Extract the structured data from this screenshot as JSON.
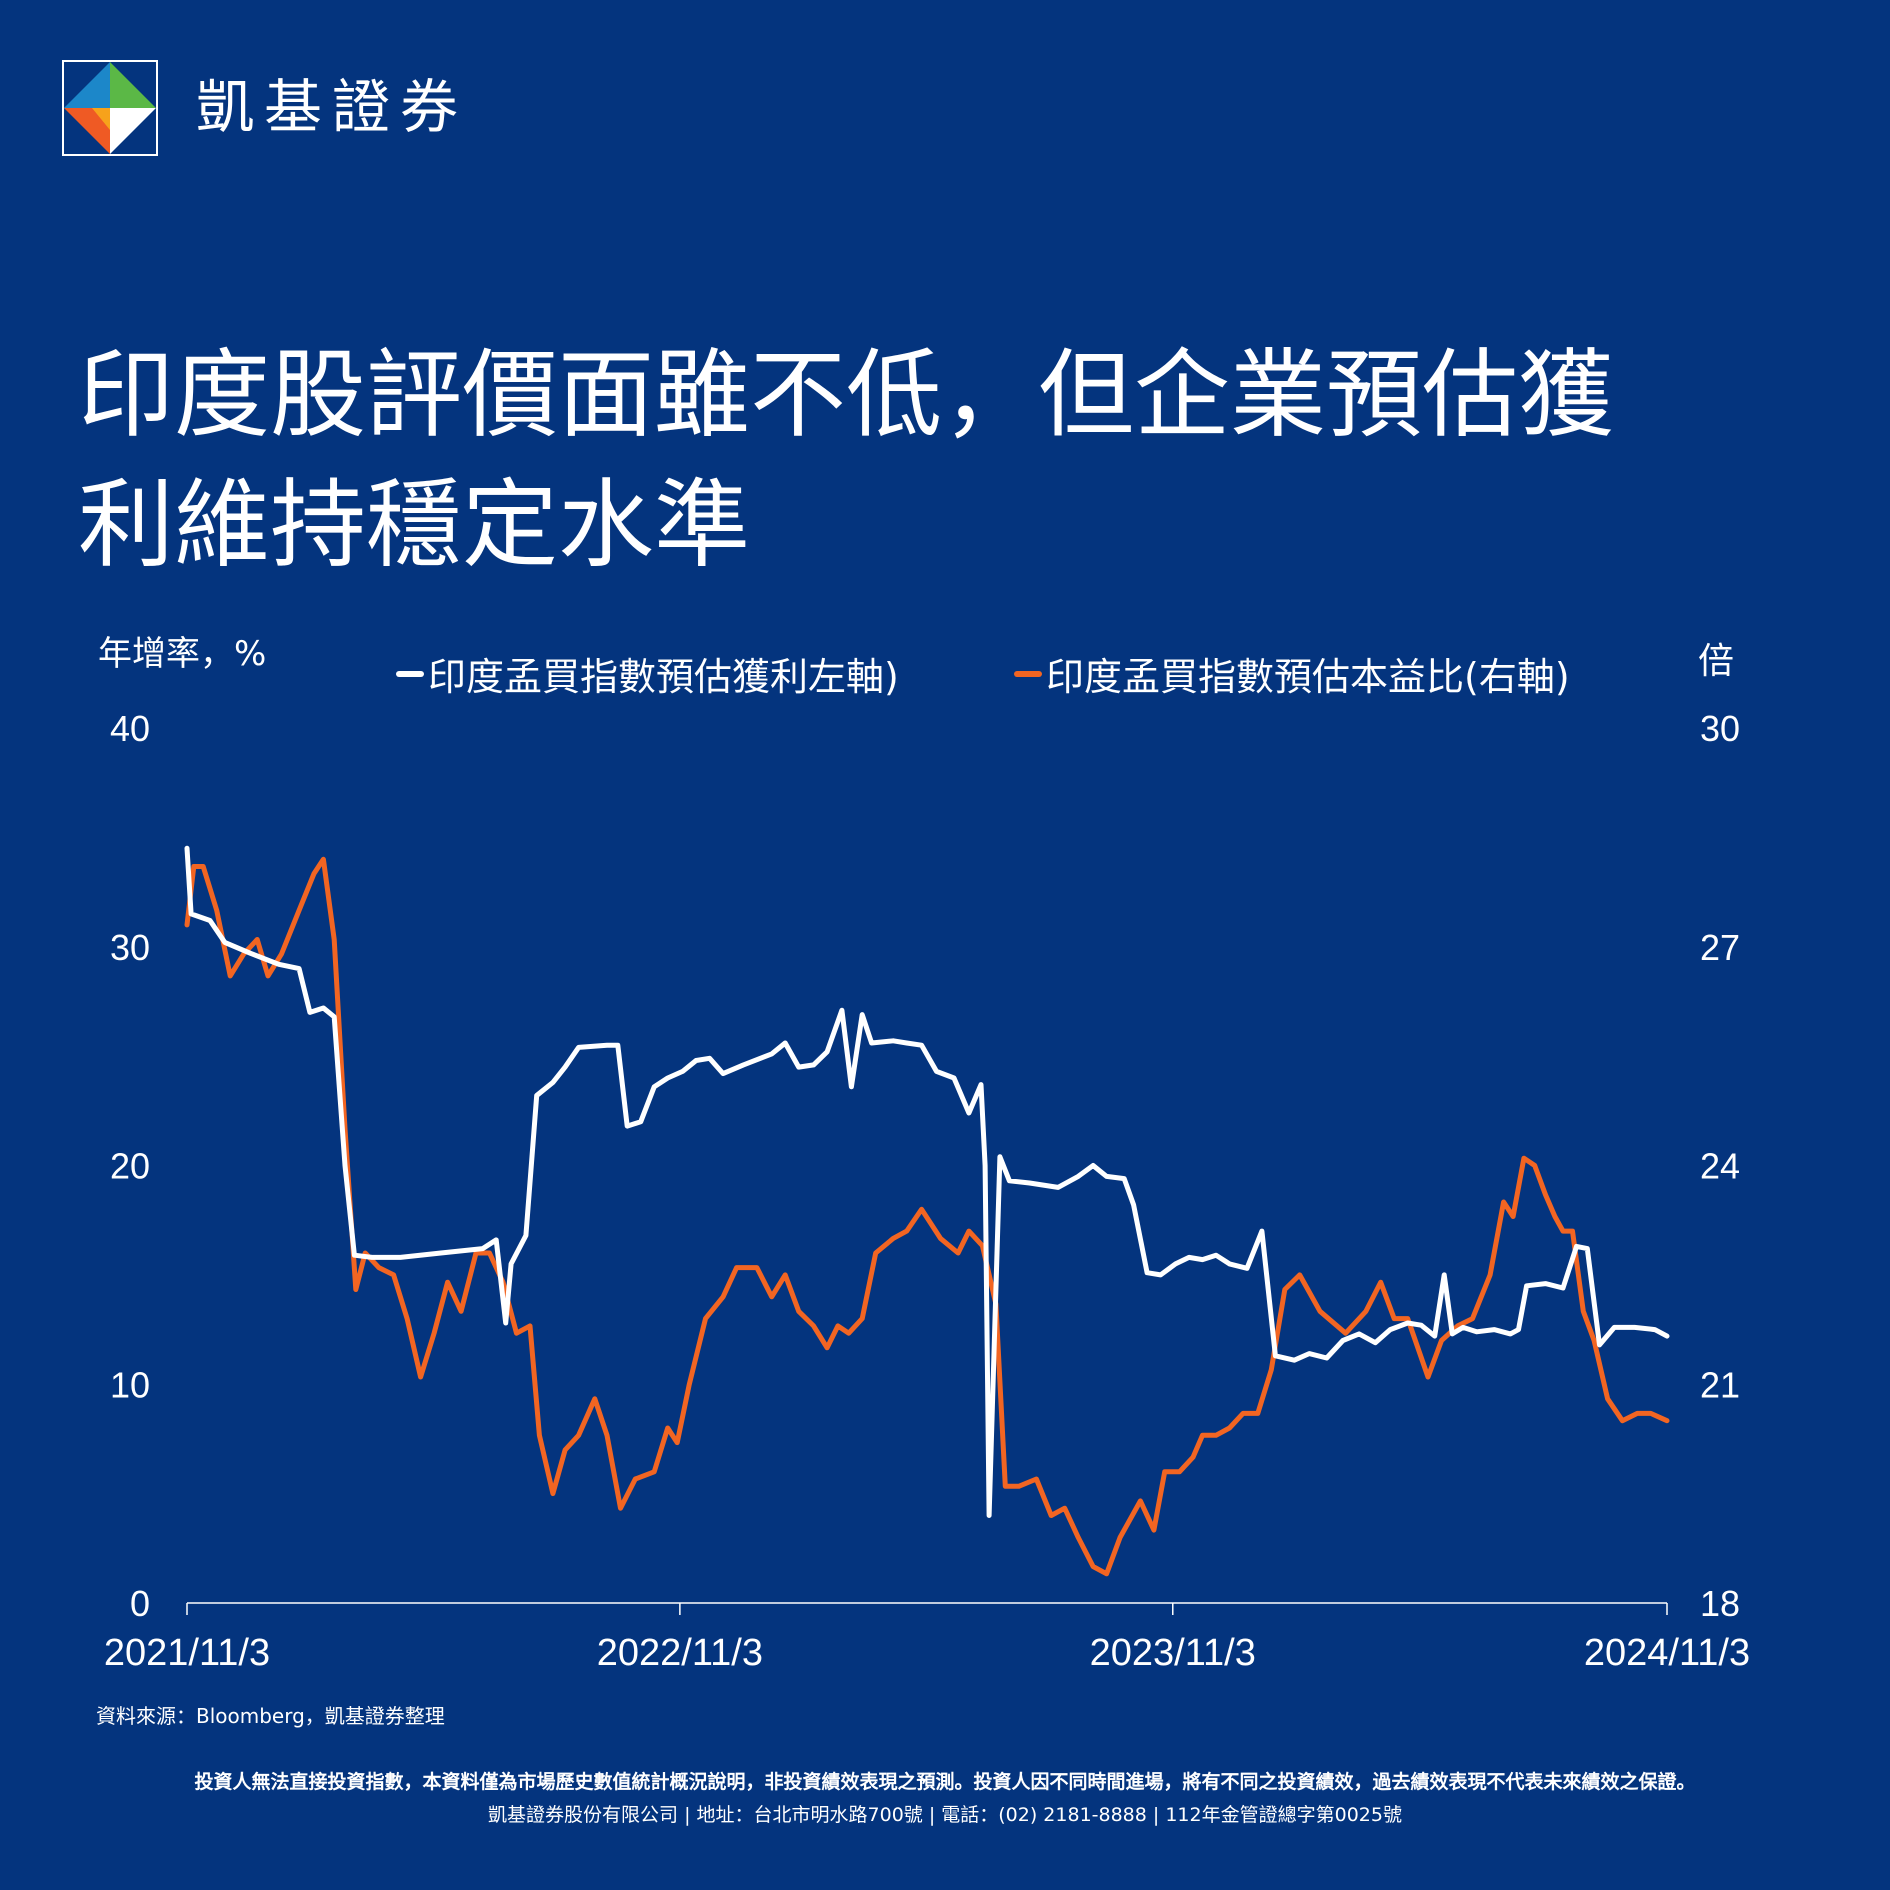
{
  "brand": {
    "name": "凱基證券"
  },
  "title": {
    "line1": "印度股評價面雖不低，但企業預估獲",
    "line2": "利維持穩定水準"
  },
  "colors": {
    "background": "#04347e",
    "series_earnings": "#ffffff",
    "series_pe": "#f26522"
  },
  "chart_data": {
    "type": "line",
    "title": "印度股評價面雖不低，但企業預估獲利維持穩定水準",
    "y_left_label": "年增率，%",
    "y_right_label": "倍",
    "y_left_ticks": [
      "40",
      "30",
      "20",
      "10",
      "0"
    ],
    "y_right_ticks": [
      "30",
      "27",
      "24",
      "21",
      "18"
    ],
    "y_left_lim": [
      0,
      40
    ],
    "y_right_lim": [
      18,
      30
    ],
    "x_ticks": [
      "2021/11/3",
      "2022/11/3",
      "2023/11/3",
      "2024/11/3"
    ],
    "x_lim": [
      "2021-11-03",
      "2024-11-03"
    ],
    "series": [
      {
        "name": "印度孟買指數預估獲利左軸)",
        "axis": "left",
        "points": [
          [
            "2021-11-03",
            34.5
          ],
          [
            "2021-11-06",
            31.5
          ],
          [
            "2021-11-20",
            31.2
          ],
          [
            "2021-12-01",
            30.2
          ],
          [
            "2021-12-20",
            29.7
          ],
          [
            "2022-01-10",
            29.2
          ],
          [
            "2022-01-25",
            29.0
          ],
          [
            "2022-02-02",
            27.0
          ],
          [
            "2022-02-12",
            27.2
          ],
          [
            "2022-02-20",
            26.8
          ],
          [
            "2022-02-28",
            20.0
          ],
          [
            "2022-03-07",
            15.9
          ],
          [
            "2022-03-20",
            15.8
          ],
          [
            "2022-04-10",
            15.8
          ],
          [
            "2022-05-10",
            16.0
          ],
          [
            "2022-06-10",
            16.2
          ],
          [
            "2022-06-20",
            16.6
          ],
          [
            "2022-06-27",
            12.8
          ],
          [
            "2022-07-01",
            15.5
          ],
          [
            "2022-07-12",
            16.8
          ],
          [
            "2022-07-20",
            23.2
          ],
          [
            "2022-08-01",
            23.8
          ],
          [
            "2022-08-10",
            24.5
          ],
          [
            "2022-08-20",
            25.4
          ],
          [
            "2022-09-10",
            25.5
          ],
          [
            "2022-09-18",
            25.5
          ],
          [
            "2022-09-25",
            21.8
          ],
          [
            "2022-10-05",
            22.0
          ],
          [
            "2022-10-15",
            23.6
          ],
          [
            "2022-10-25",
            24.0
          ],
          [
            "2022-11-05",
            24.3
          ],
          [
            "2022-11-15",
            24.8
          ],
          [
            "2022-11-25",
            24.9
          ],
          [
            "2022-12-05",
            24.2
          ],
          [
            "2022-12-20",
            24.6
          ],
          [
            "2023-01-10",
            25.1
          ],
          [
            "2023-01-20",
            25.6
          ],
          [
            "2023-01-30",
            24.5
          ],
          [
            "2023-02-10",
            24.6
          ],
          [
            "2023-02-20",
            25.2
          ],
          [
            "2023-03-03",
            27.1
          ],
          [
            "2023-03-10",
            23.6
          ],
          [
            "2023-03-18",
            26.9
          ],
          [
            "2023-03-25",
            25.6
          ],
          [
            "2023-04-10",
            25.7
          ],
          [
            "2023-04-20",
            25.6
          ],
          [
            "2023-05-01",
            25.5
          ],
          [
            "2023-05-12",
            24.3
          ],
          [
            "2023-05-25",
            24.0
          ],
          [
            "2023-06-05",
            22.4
          ],
          [
            "2023-06-14",
            23.7
          ],
          [
            "2023-06-17",
            20.0
          ],
          [
            "2023-06-20",
            4.0
          ],
          [
            "2023-06-28",
            20.4
          ],
          [
            "2023-07-05",
            19.3
          ],
          [
            "2023-07-20",
            19.2
          ],
          [
            "2023-08-10",
            19.0
          ],
          [
            "2023-08-25",
            19.5
          ],
          [
            "2023-09-05",
            20.0
          ],
          [
            "2023-09-15",
            19.5
          ],
          [
            "2023-09-28",
            19.4
          ],
          [
            "2023-10-05",
            18.2
          ],
          [
            "2023-10-15",
            15.1
          ],
          [
            "2023-10-25",
            15.0
          ],
          [
            "2023-11-05",
            15.5
          ],
          [
            "2023-11-15",
            15.8
          ],
          [
            "2023-11-25",
            15.7
          ],
          [
            "2023-12-05",
            15.9
          ],
          [
            "2023-12-15",
            15.5
          ],
          [
            "2023-12-28",
            15.3
          ],
          [
            "2024-01-08",
            17.0
          ],
          [
            "2024-01-18",
            11.3
          ],
          [
            "2024-02-01",
            11.1
          ],
          [
            "2024-02-12",
            11.4
          ],
          [
            "2024-02-25",
            11.2
          ],
          [
            "2024-03-08",
            12.0
          ],
          [
            "2024-03-20",
            12.3
          ],
          [
            "2024-04-01",
            11.9
          ],
          [
            "2024-04-12",
            12.5
          ],
          [
            "2024-04-25",
            12.8
          ],
          [
            "2024-05-05",
            12.7
          ],
          [
            "2024-05-15",
            12.2
          ],
          [
            "2024-05-22",
            15.0
          ],
          [
            "2024-05-28",
            12.3
          ],
          [
            "2024-06-05",
            12.6
          ],
          [
            "2024-06-15",
            12.4
          ],
          [
            "2024-06-28",
            12.5
          ],
          [
            "2024-07-10",
            12.3
          ],
          [
            "2024-07-16",
            12.5
          ],
          [
            "2024-07-22",
            14.5
          ],
          [
            "2024-08-05",
            14.6
          ],
          [
            "2024-08-18",
            14.4
          ],
          [
            "2024-08-28",
            16.3
          ],
          [
            "2024-09-05",
            16.2
          ],
          [
            "2024-09-14",
            11.8
          ],
          [
            "2024-09-25",
            12.6
          ],
          [
            "2024-10-10",
            12.6
          ],
          [
            "2024-10-25",
            12.5
          ],
          [
            "2024-11-03",
            12.2
          ]
        ]
      },
      {
        "name": "印度孟買指數預估本益比(右軸)",
        "axis": "right",
        "points": [
          [
            "2021-11-03",
            27.3
          ],
          [
            "2021-11-08",
            28.1
          ],
          [
            "2021-11-15",
            28.1
          ],
          [
            "2021-11-25",
            27.5
          ],
          [
            "2021-12-05",
            26.6
          ],
          [
            "2021-12-15",
            26.9
          ],
          [
            "2021-12-25",
            27.1
          ],
          [
            "2022-01-02",
            26.6
          ],
          [
            "2022-01-12",
            26.9
          ],
          [
            "2022-01-25",
            27.5
          ],
          [
            "2022-02-05",
            28.0
          ],
          [
            "2022-02-12",
            28.2
          ],
          [
            "2022-02-20",
            27.1
          ],
          [
            "2022-02-28",
            24.5
          ],
          [
            "2022-03-08",
            22.3
          ],
          [
            "2022-03-15",
            22.8
          ],
          [
            "2022-03-25",
            22.6
          ],
          [
            "2022-04-05",
            22.5
          ],
          [
            "2022-04-15",
            21.9
          ],
          [
            "2022-04-25",
            21.1
          ],
          [
            "2022-05-05",
            21.7
          ],
          [
            "2022-05-15",
            22.4
          ],
          [
            "2022-05-25",
            22.0
          ],
          [
            "2022-06-05",
            22.8
          ],
          [
            "2022-06-15",
            22.8
          ],
          [
            "2022-06-25",
            22.4
          ],
          [
            "2022-07-05",
            21.7
          ],
          [
            "2022-07-15",
            21.8
          ],
          [
            "2022-07-22",
            20.3
          ],
          [
            "2022-08-01",
            19.5
          ],
          [
            "2022-08-10",
            20.1
          ],
          [
            "2022-08-20",
            20.3
          ],
          [
            "2022-09-01",
            20.8
          ],
          [
            "2022-09-10",
            20.3
          ],
          [
            "2022-09-20",
            19.3
          ],
          [
            "2022-10-01",
            19.7
          ],
          [
            "2022-10-15",
            19.8
          ],
          [
            "2022-10-25",
            20.4
          ],
          [
            "2022-11-01",
            20.2
          ],
          [
            "2022-11-10",
            21.0
          ],
          [
            "2022-11-22",
            21.9
          ],
          [
            "2022-12-05",
            22.2
          ],
          [
            "2022-12-15",
            22.6
          ],
          [
            "2022-12-30",
            22.6
          ],
          [
            "2023-01-10",
            22.2
          ],
          [
            "2023-01-20",
            22.5
          ],
          [
            "2023-01-30",
            22.0
          ],
          [
            "2023-02-10",
            21.8
          ],
          [
            "2023-02-20",
            21.5
          ],
          [
            "2023-02-28",
            21.8
          ],
          [
            "2023-03-08",
            21.7
          ],
          [
            "2023-03-18",
            21.9
          ],
          [
            "2023-03-28",
            22.8
          ],
          [
            "2023-04-10",
            23.0
          ],
          [
            "2023-04-20",
            23.1
          ],
          [
            "2023-05-01",
            23.4
          ],
          [
            "2023-05-15",
            23.0
          ],
          [
            "2023-05-28",
            22.8
          ],
          [
            "2023-06-05",
            23.1
          ],
          [
            "2023-06-15",
            22.9
          ],
          [
            "2023-06-25",
            22.1
          ],
          [
            "2023-07-02",
            19.6
          ],
          [
            "2023-07-12",
            19.6
          ],
          [
            "2023-07-25",
            19.7
          ],
          [
            "2023-08-05",
            19.2
          ],
          [
            "2023-08-15",
            19.3
          ],
          [
            "2023-08-25",
            18.9
          ],
          [
            "2023-09-05",
            18.5
          ],
          [
            "2023-09-15",
            18.4
          ],
          [
            "2023-09-25",
            18.9
          ],
          [
            "2023-10-10",
            19.4
          ],
          [
            "2023-10-20",
            19.0
          ],
          [
            "2023-10-28",
            19.8
          ],
          [
            "2023-11-08",
            19.8
          ],
          [
            "2023-11-18",
            20.0
          ],
          [
            "2023-11-25",
            20.3
          ],
          [
            "2023-12-05",
            20.3
          ],
          [
            "2023-12-15",
            20.4
          ],
          [
            "2023-12-25",
            20.6
          ],
          [
            "2024-01-05",
            20.6
          ],
          [
            "2024-01-15",
            21.2
          ],
          [
            "2024-01-25",
            22.3
          ],
          [
            "2024-02-05",
            22.5
          ],
          [
            "2024-02-20",
            22.0
          ],
          [
            "2024-03-10",
            21.7
          ],
          [
            "2024-03-25",
            22.0
          ],
          [
            "2024-04-05",
            22.4
          ],
          [
            "2024-04-15",
            21.9
          ],
          [
            "2024-04-25",
            21.9
          ],
          [
            "2024-05-10",
            21.1
          ],
          [
            "2024-05-20",
            21.6
          ],
          [
            "2024-06-01",
            21.8
          ],
          [
            "2024-06-12",
            21.9
          ],
          [
            "2024-06-25",
            22.5
          ],
          [
            "2024-07-05",
            23.5
          ],
          [
            "2024-07-12",
            23.3
          ],
          [
            "2024-07-20",
            24.1
          ],
          [
            "2024-07-28",
            24.0
          ],
          [
            "2024-08-05",
            23.6
          ],
          [
            "2024-08-12",
            23.3
          ],
          [
            "2024-08-18",
            23.1
          ],
          [
            "2024-08-25",
            23.1
          ],
          [
            "2024-09-02",
            22.0
          ],
          [
            "2024-09-10",
            21.6
          ],
          [
            "2024-09-20",
            20.8
          ],
          [
            "2024-10-01",
            20.5
          ],
          [
            "2024-10-12",
            20.6
          ],
          [
            "2024-10-22",
            20.6
          ],
          [
            "2024-11-03",
            20.5
          ]
        ]
      }
    ]
  },
  "source_note": "資料來源：Bloomberg，凱基證券整理",
  "disclaimer": "投資人無法直接投資指數，本資料僅為市場歷史數值統計概況說明，非投資績效表現之預測。投資人因不同時間進場，將有不同之投資績效，過去績效表現不代表未來績效之保證。",
  "company_info": "凱基證券股份有限公司 | 地址：台北市明水路700號 | 電話：(02) 2181-8888 | 112年金管證總字第0025號"
}
